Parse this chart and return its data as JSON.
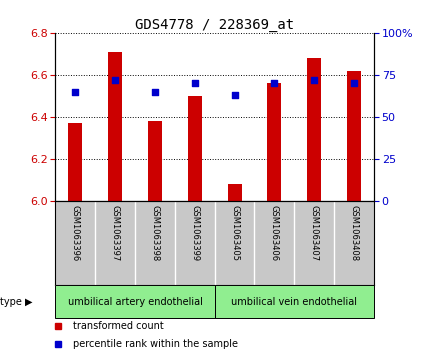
{
  "title": "GDS4778 / 228369_at",
  "samples": [
    "GSM1063396",
    "GSM1063397",
    "GSM1063398",
    "GSM1063399",
    "GSM1063405",
    "GSM1063406",
    "GSM1063407",
    "GSM1063408"
  ],
  "transformed_counts": [
    6.37,
    6.71,
    6.38,
    6.5,
    6.08,
    6.56,
    6.68,
    6.62
  ],
  "percentile_ranks": [
    65,
    72,
    65,
    70,
    63,
    70,
    72,
    70
  ],
  "ylim_left": [
    6.0,
    6.8
  ],
  "yticks_left": [
    6.0,
    6.2,
    6.4,
    6.6,
    6.8
  ],
  "ylim_right": [
    0,
    100
  ],
  "yticks_right": [
    0,
    25,
    50,
    75,
    100
  ],
  "yticklabels_right": [
    "0",
    "25",
    "50",
    "75",
    "100%"
  ],
  "bar_color": "#cc0000",
  "dot_color": "#0000cc",
  "bar_width": 0.35,
  "cell_type_groups": [
    {
      "label": "umbilical artery endothelial",
      "start": 0,
      "end": 3,
      "color": "#90ee90"
    },
    {
      "label": "umbilical vein endothelial",
      "start": 4,
      "end": 7,
      "color": "#90ee90"
    }
  ],
  "cell_type_label": "cell type",
  "legend_items": [
    {
      "label": "transformed count",
      "color": "#cc0000"
    },
    {
      "label": "percentile rank within the sample",
      "color": "#0000cc"
    }
  ],
  "bg_color": "#ffffff",
  "plot_bg": "#ffffff",
  "tick_label_color_left": "#cc0000",
  "tick_label_color_right": "#0000cc",
  "grid_color": "#000000",
  "label_bg": "#c8c8c8",
  "tick_fontsize": 8,
  "title_fontsize": 10
}
